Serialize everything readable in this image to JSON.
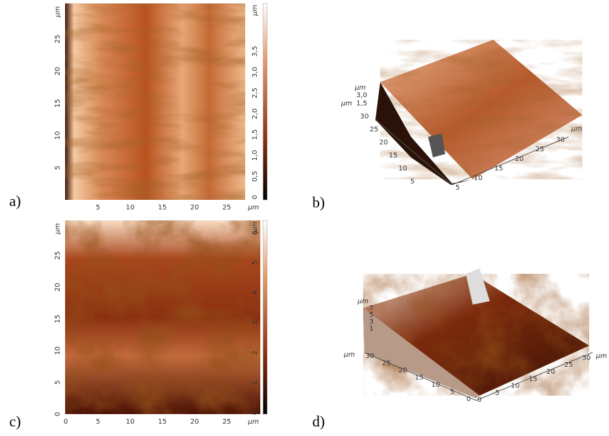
{
  "panels": [
    {
      "label": "a)",
      "x_unit": "µm",
      "y_unit": "µm",
      "x_ticks": [
        "5",
        "10",
        "15",
        "20",
        "25"
      ],
      "y_ticks": [
        "5",
        "10",
        "15",
        "20",
        "25"
      ],
      "colorbar_unit": "µm",
      "colorbar_ticks": [
        "0",
        "0,5",
        "1,0",
        "1,5",
        "2,0",
        "2,5",
        "3,0",
        "3,5"
      ]
    },
    {
      "label": "b)",
      "z_unit": "µm",
      "z_ticks": [
        "3,0",
        "1,5"
      ],
      "y_unit": "µm",
      "y_ticks": [
        "30",
        "25",
        "20",
        "15",
        "10",
        "5"
      ],
      "x_ticks": [
        "5",
        "10",
        "15",
        "20",
        "25",
        "30"
      ],
      "x_unit": "µm"
    },
    {
      "label": "c)",
      "x_unit": "µm",
      "y_unit": "µm",
      "x_ticks": [
        "0",
        "5",
        "10",
        "15",
        "20",
        "25"
      ],
      "y_ticks": [
        "0",
        "5",
        "10",
        "15",
        "20",
        "25"
      ],
      "colorbar_unit": "µm",
      "colorbar_ticks": [
        "0",
        "1",
        "2",
        "3",
        "4",
        "5",
        "6"
      ]
    },
    {
      "label": "d)",
      "z_unit": "µm",
      "z_ticks": [
        "7",
        "5",
        "3",
        "1"
      ],
      "y_unit": "µm",
      "y_ticks": [
        "30",
        "25",
        "20",
        "15",
        "10",
        "5",
        "0"
      ],
      "x_ticks": [
        "0",
        "5",
        "10",
        "15",
        "20",
        "25",
        "30"
      ],
      "x_unit": "µm"
    }
  ]
}
